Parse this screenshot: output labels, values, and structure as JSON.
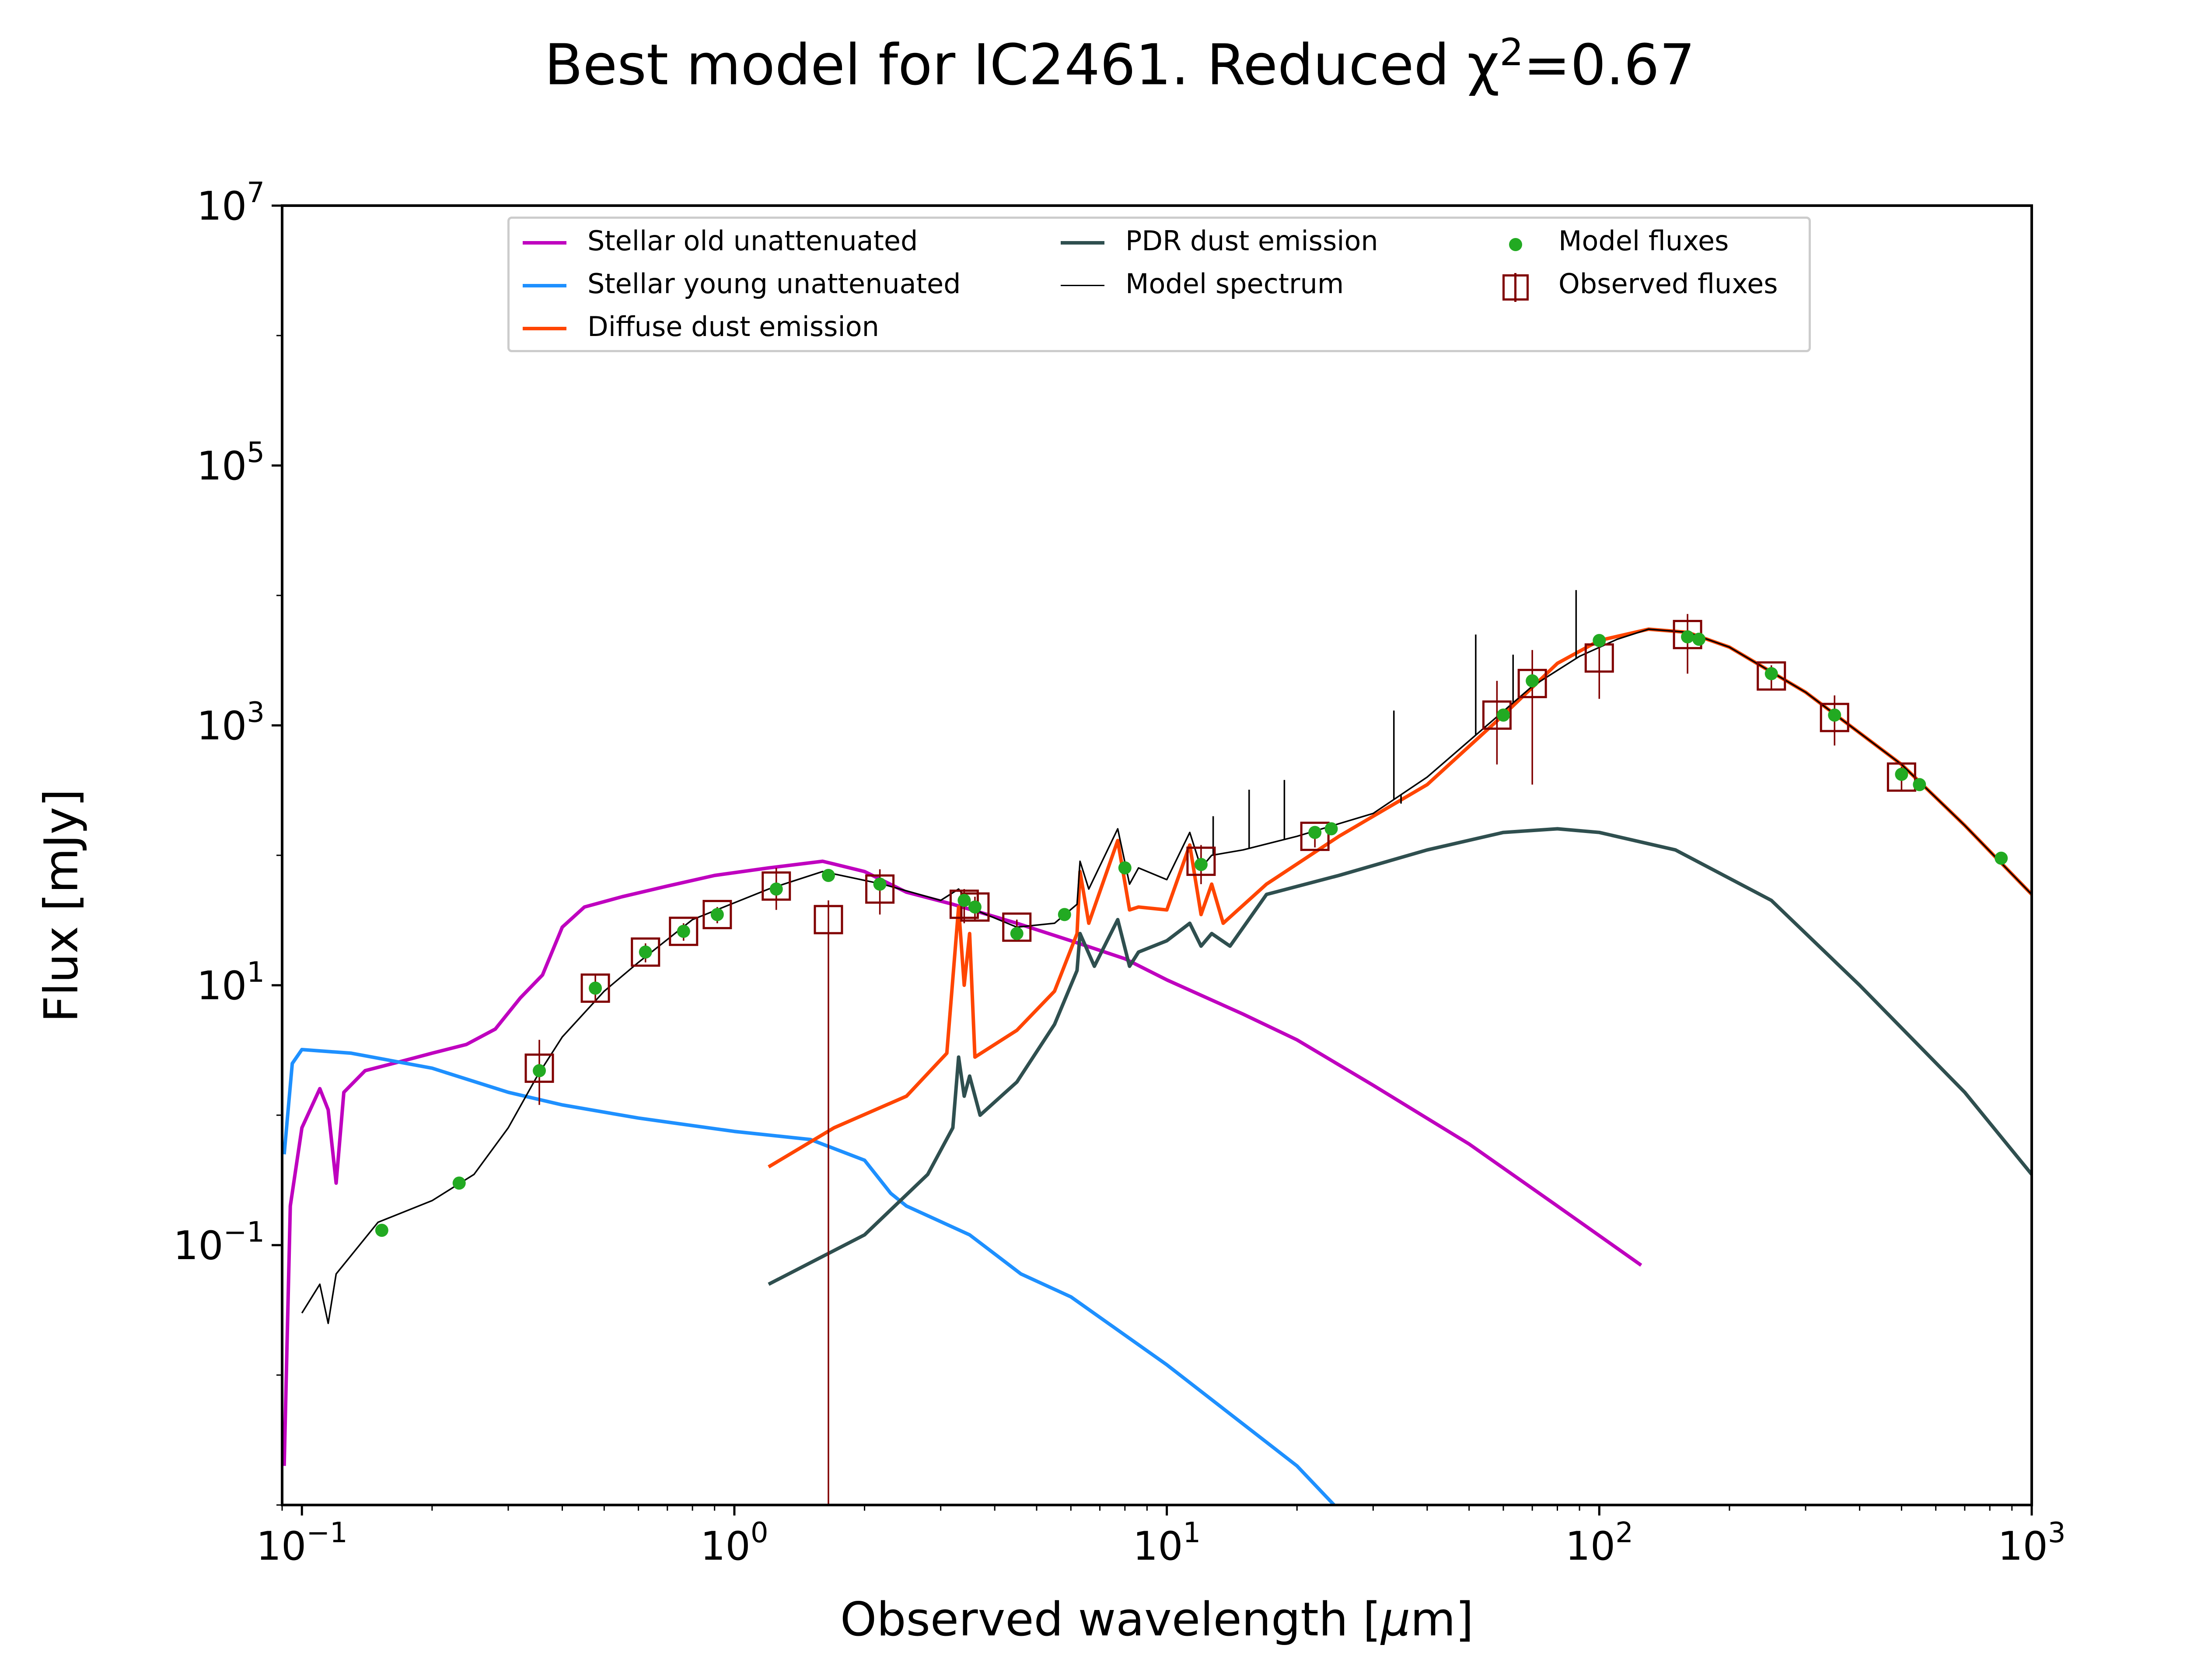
{
  "title": {
    "text": "Best model for IC2461. Reduced χ",
    "sup": "2",
    "suffix": "=0.67"
  },
  "xlabel": {
    "text": "Observed wavelength [",
    "mu": "μ",
    "suffix": "m]"
  },
  "ylabel": "Flux [mJy]",
  "legend": {
    "position": "upper-center",
    "columns": 3,
    "items": [
      {
        "label": "Stellar old unattenuated",
        "color": "#bf00bf",
        "kind": "line"
      },
      {
        "label": "Stellar young unattenuated",
        "color": "#1e90ff",
        "kind": "line"
      },
      {
        "label": "Diffuse dust emission",
        "color": "#ff4500",
        "kind": "line"
      },
      {
        "label": "PDR dust emission",
        "color": "#2f4f4f",
        "kind": "line"
      },
      {
        "label": "Model spectrum",
        "color": "#000000",
        "kind": "thin-line"
      },
      {
        "label": "Model fluxes",
        "color": "#22aa22",
        "kind": "dot"
      },
      {
        "label": "Observed fluxes",
        "color": "#800000",
        "kind": "square"
      }
    ]
  },
  "chart_data": {
    "type": "line",
    "title": "Best model for IC2461. Reduced χ2=0.67",
    "xlabel": "Observed wavelength [μm]",
    "ylabel": "Flux [mJy]",
    "xscale": "log",
    "yscale": "log",
    "xlim": [
      0.09,
      1000
    ],
    "ylim": [
      0.001,
      10000000
    ],
    "grid": false,
    "x_ticks": [
      {
        "value": 0.1,
        "base": "10",
        "exp": "−1"
      },
      {
        "value": 1,
        "base": "10",
        "exp": "0"
      },
      {
        "value": 10,
        "base": "10",
        "exp": "1"
      },
      {
        "value": 100,
        "base": "10",
        "exp": "2"
      },
      {
        "value": 1000,
        "base": "10",
        "exp": "3"
      }
    ],
    "y_ticks": [
      {
        "value": 0.1,
        "base": "10",
        "exp": "−1"
      },
      {
        "value": 10,
        "base": "10",
        "exp": "1"
      },
      {
        "value": 1000,
        "base": "10",
        "exp": "3"
      },
      {
        "value": 100000,
        "base": "10",
        "exp": "5"
      },
      {
        "value": 10000000,
        "base": "10",
        "exp": "7"
      }
    ],
    "series": [
      {
        "name": "Stellar old unattenuated",
        "color": "#bf00bf",
        "points": [
          [
            0.091,
            0.002
          ],
          [
            0.094,
            0.2
          ],
          [
            0.1,
            0.8
          ],
          [
            0.11,
            1.6
          ],
          [
            0.115,
            1.1
          ],
          [
            0.12,
            0.3
          ],
          [
            0.125,
            1.5
          ],
          [
            0.14,
            2.2
          ],
          [
            0.17,
            2.6
          ],
          [
            0.2,
            3.0
          ],
          [
            0.24,
            3.5
          ],
          [
            0.28,
            4.6
          ],
          [
            0.32,
            8.0
          ],
          [
            0.36,
            12
          ],
          [
            0.4,
            28
          ],
          [
            0.45,
            40
          ],
          [
            0.55,
            48
          ],
          [
            0.7,
            58
          ],
          [
            0.9,
            70
          ],
          [
            1.2,
            80
          ],
          [
            1.6,
            90
          ],
          [
            2.0,
            75
          ],
          [
            2.5,
            52
          ],
          [
            3.2,
            42
          ],
          [
            4.5,
            30
          ],
          [
            6.0,
            22
          ],
          [
            8.0,
            16
          ],
          [
            10,
            11
          ],
          [
            15,
            6
          ],
          [
            20,
            3.8
          ],
          [
            30,
            1.7
          ],
          [
            50,
            0.6
          ],
          [
            80,
            0.2
          ],
          [
            125,
            0.07
          ]
        ]
      },
      {
        "name": "Stellar young unattenuated",
        "color": "#1e90ff",
        "points": [
          [
            0.091,
            0.5
          ],
          [
            0.095,
            2.5
          ],
          [
            0.1,
            3.2
          ],
          [
            0.13,
            3.0
          ],
          [
            0.2,
            2.3
          ],
          [
            0.3,
            1.5
          ],
          [
            0.4,
            1.2
          ],
          [
            0.6,
            0.95
          ],
          [
            1.0,
            0.75
          ],
          [
            1.5,
            0.65
          ],
          [
            2.0,
            0.45
          ],
          [
            2.3,
            0.25
          ],
          [
            2.5,
            0.2
          ],
          [
            3.5,
            0.12
          ],
          [
            4.6,
            0.06
          ],
          [
            6,
            0.04
          ],
          [
            10,
            0.012
          ],
          [
            20,
            0.002
          ],
          [
            47,
            0.0001
          ]
        ]
      },
      {
        "name": "Diffuse dust emission",
        "color": "#ff4500",
        "points": [
          [
            1.2,
            0.4
          ],
          [
            1.7,
            0.8
          ],
          [
            2.5,
            1.4
          ],
          [
            3.1,
            3.0
          ],
          [
            3.3,
            40
          ],
          [
            3.4,
            10
          ],
          [
            3.5,
            25
          ],
          [
            3.6,
            2.8
          ],
          [
            4.5,
            4.5
          ],
          [
            5.5,
            9
          ],
          [
            6.2,
            25
          ],
          [
            6.3,
            75
          ],
          [
            6.6,
            30
          ],
          [
            7.7,
            130
          ],
          [
            8.2,
            38
          ],
          [
            8.6,
            40
          ],
          [
            10,
            38
          ],
          [
            11.3,
            120
          ],
          [
            12,
            35
          ],
          [
            12.7,
            60
          ],
          [
            13.5,
            30
          ],
          [
            17,
            60
          ],
          [
            25,
            140
          ],
          [
            40,
            350
          ],
          [
            60,
            1200
          ],
          [
            80,
            3000
          ],
          [
            100,
            4500
          ],
          [
            130,
            5500
          ],
          [
            160,
            5200
          ],
          [
            200,
            4000
          ],
          [
            300,
            1800
          ],
          [
            500,
            500
          ],
          [
            700,
            170
          ],
          [
            1000,
            50
          ]
        ]
      },
      {
        "name": "PDR dust emission",
        "color": "#2f4f4f",
        "points": [
          [
            1.2,
            0.05
          ],
          [
            2.0,
            0.12
          ],
          [
            2.8,
            0.35
          ],
          [
            3.2,
            0.8
          ],
          [
            3.3,
            2.8
          ],
          [
            3.4,
            1.4
          ],
          [
            3.5,
            2.0
          ],
          [
            3.7,
            1.0
          ],
          [
            4.5,
            1.8
          ],
          [
            5.5,
            5
          ],
          [
            6.2,
            13
          ],
          [
            6.3,
            25
          ],
          [
            6.8,
            14
          ],
          [
            7.7,
            32
          ],
          [
            8.2,
            14
          ],
          [
            8.6,
            18
          ],
          [
            10,
            22
          ],
          [
            11.3,
            30
          ],
          [
            12,
            20
          ],
          [
            12.7,
            25
          ],
          [
            14,
            20
          ],
          [
            17,
            50
          ],
          [
            25,
            70
          ],
          [
            40,
            110
          ],
          [
            60,
            150
          ],
          [
            80,
            160
          ],
          [
            100,
            150
          ],
          [
            150,
            110
          ],
          [
            250,
            45
          ],
          [
            400,
            10
          ],
          [
            700,
            1.5
          ],
          [
            1000,
            0.35
          ]
        ]
      },
      {
        "name": "Model spectrum",
        "color": "#000000",
        "points": [
          [
            0.1,
            0.03
          ],
          [
            0.11,
            0.05
          ],
          [
            0.115,
            0.025
          ],
          [
            0.12,
            0.06
          ],
          [
            0.15,
            0.15
          ],
          [
            0.2,
            0.22
          ],
          [
            0.25,
            0.35
          ],
          [
            0.3,
            0.8
          ],
          [
            0.35,
            2.0
          ],
          [
            0.4,
            4.0
          ],
          [
            0.5,
            9
          ],
          [
            0.6,
            15
          ],
          [
            0.8,
            32
          ],
          [
            1.2,
            55
          ],
          [
            1.6,
            75
          ],
          [
            2.2,
            60
          ],
          [
            3.0,
            45
          ],
          [
            3.3,
            55
          ],
          [
            3.6,
            38
          ],
          [
            4.5,
            28
          ],
          [
            5.5,
            30
          ],
          [
            6.2,
            42
          ],
          [
            6.3,
            90
          ],
          [
            6.6,
            55
          ],
          [
            7.7,
            160
          ],
          [
            8.2,
            60
          ],
          [
            8.6,
            80
          ],
          [
            10,
            65
          ],
          [
            11.3,
            150
          ],
          [
            12,
            80
          ],
          [
            12.7,
            100
          ],
          [
            15,
            110
          ],
          [
            20,
            140
          ],
          [
            30,
            210
          ],
          [
            40,
            400
          ],
          [
            55,
            1000
          ],
          [
            70,
            2000
          ],
          [
            90,
            3400
          ],
          [
            110,
            4600
          ],
          [
            130,
            5500
          ],
          [
            160,
            5200
          ],
          [
            200,
            4000
          ],
          [
            300,
            1800
          ],
          [
            500,
            500
          ],
          [
            700,
            170
          ],
          [
            1000,
            50
          ]
        ]
      }
    ],
    "emission_lines": [
      {
        "x": 12.8,
        "y": 200
      },
      {
        "x": 15.5,
        "y": 320
      },
      {
        "x": 18.7,
        "y": 380
      },
      {
        "x": 33.5,
        "y": 1300
      },
      {
        "x": 34.8,
        "y": 250
      },
      {
        "x": 51.8,
        "y": 5000
      },
      {
        "x": 63.2,
        "y": 3500
      },
      {
        "x": 88.4,
        "y": 11000
      }
    ],
    "model_fluxes": [
      [
        0.153,
        0.13
      ],
      [
        0.231,
        0.3
      ],
      [
        0.354,
        2.2
      ],
      [
        0.477,
        9.5
      ],
      [
        0.623,
        18
      ],
      [
        0.763,
        26
      ],
      [
        0.913,
        35
      ],
      [
        1.25,
        55
      ],
      [
        1.65,
        70
      ],
      [
        2.17,
        60
      ],
      [
        3.4,
        45
      ],
      [
        3.6,
        40
      ],
      [
        4.5,
        25
      ],
      [
        5.8,
        35
      ],
      [
        8.0,
        80
      ],
      [
        12,
        85
      ],
      [
        22,
        150
      ],
      [
        24,
        160
      ],
      [
        60,
        1200
      ],
      [
        70,
        2200
      ],
      [
        100,
        4500
      ],
      [
        160,
        4800
      ],
      [
        170,
        4600
      ],
      [
        250,
        2500
      ],
      [
        350,
        1200
      ],
      [
        500,
        420
      ],
      [
        550,
        350
      ],
      [
        850,
        95
      ]
    ],
    "observed_fluxes": [
      {
        "x": 0.354,
        "y": 2.3,
        "ylo": 1.2,
        "yhi": 3.8
      },
      {
        "x": 0.477,
        "y": 9.5,
        "ylo": 7.5,
        "yhi": 12
      },
      {
        "x": 0.623,
        "y": 18,
        "ylo": 15,
        "yhi": 21
      },
      {
        "x": 0.763,
        "y": 26,
        "ylo": 22,
        "yhi": 30
      },
      {
        "x": 0.913,
        "y": 35,
        "ylo": 30,
        "yhi": 40
      },
      {
        "x": 1.25,
        "y": 58,
        "ylo": 38,
        "yhi": 80
      },
      {
        "x": 1.65,
        "y": 32,
        "ylo": 0.001,
        "yhi": 45
      },
      {
        "x": 2.17,
        "y": 55,
        "ylo": 35,
        "yhi": 78
      },
      {
        "x": 3.4,
        "y": 42,
        "ylo": 30,
        "yhi": 55
      },
      {
        "x": 3.6,
        "y": 40,
        "ylo": 32,
        "yhi": 48
      },
      {
        "x": 4.5,
        "y": 28,
        "ylo": 24,
        "yhi": 32
      },
      {
        "x": 12,
        "y": 90,
        "ylo": 60,
        "yhi": 120
      },
      {
        "x": 22,
        "y": 140,
        "ylo": 115,
        "yhi": 165
      },
      {
        "x": 58,
        "y": 1200,
        "ylo": 500,
        "yhi": 2200
      },
      {
        "x": 70,
        "y": 2100,
        "ylo": 350,
        "yhi": 3800
      },
      {
        "x": 100,
        "y": 3300,
        "ylo": 1600,
        "yhi": 5000
      },
      {
        "x": 160,
        "y": 5000,
        "ylo": 2500,
        "yhi": 7200
      },
      {
        "x": 250,
        "y": 2400,
        "ylo": 1900,
        "yhi": 2900
      },
      {
        "x": 350,
        "y": 1150,
        "ylo": 700,
        "yhi": 1700
      },
      {
        "x": 500,
        "y": 400,
        "ylo": 320,
        "yhi": 480
      }
    ]
  }
}
